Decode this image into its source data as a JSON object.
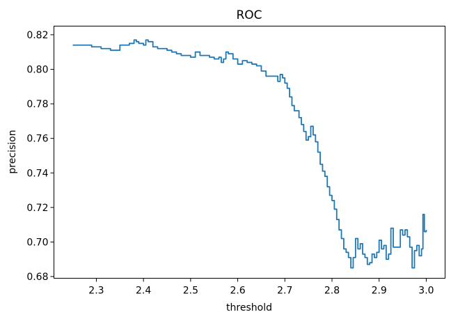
{
  "chart_data": {
    "type": "line",
    "title": "ROC",
    "xlabel": "threshold",
    "ylabel": "precision",
    "xlim": [
      2.21,
      3.04
    ],
    "ylim": [
      0.679,
      0.825
    ],
    "grid": false,
    "x_ticks": [
      2.3,
      2.4,
      2.5,
      2.6,
      2.7,
      2.8,
      2.9,
      3.0
    ],
    "x_tick_labels": [
      "2.3",
      "2.4",
      "2.5",
      "2.6",
      "2.7",
      "2.8",
      "2.9",
      "3.0"
    ],
    "y_ticks": [
      0.68,
      0.7,
      0.72,
      0.74,
      0.76,
      0.78,
      0.8,
      0.82
    ],
    "y_tick_labels": [
      "0.68",
      "0.70",
      "0.72",
      "0.74",
      "0.76",
      "0.78",
      "0.80",
      "0.82"
    ],
    "series": [
      {
        "color": "#1f77b4",
        "x": [
          2.25,
          2.27,
          2.29,
          2.31,
          2.33,
          2.35,
          2.36,
          2.37,
          2.38,
          2.385,
          2.39,
          2.395,
          2.4,
          2.405,
          2.41,
          2.42,
          2.43,
          2.44,
          2.45,
          2.46,
          2.47,
          2.48,
          2.49,
          2.5,
          2.51,
          2.52,
          2.53,
          2.54,
          2.55,
          2.56,
          2.565,
          2.57,
          2.575,
          2.58,
          2.59,
          2.6,
          2.61,
          2.62,
          2.63,
          2.64,
          2.65,
          2.66,
          2.67,
          2.68,
          2.685,
          2.69,
          2.695,
          2.7,
          2.705,
          2.71,
          2.715,
          2.72,
          2.725,
          2.73,
          2.735,
          2.74,
          2.745,
          2.75,
          2.755,
          2.76,
          2.765,
          2.77,
          2.775,
          2.78,
          2.785,
          2.79,
          2.795,
          2.8,
          2.805,
          2.81,
          2.815,
          2.82,
          2.825,
          2.83,
          2.835,
          2.84,
          2.845,
          2.85,
          2.855,
          2.86,
          2.865,
          2.87,
          2.875,
          2.88,
          2.885,
          2.89,
          2.895,
          2.9,
          2.905,
          2.91,
          2.915,
          2.92,
          2.925,
          2.93,
          2.935,
          2.94,
          2.945,
          2.95,
          2.955,
          2.96,
          2.965,
          2.97,
          2.975,
          2.98,
          2.985,
          2.99,
          2.993,
          2.996,
          3.0
        ],
        "y": [
          0.814,
          0.814,
          0.813,
          0.812,
          0.811,
          0.814,
          0.814,
          0.815,
          0.817,
          0.816,
          0.815,
          0.815,
          0.814,
          0.817,
          0.816,
          0.813,
          0.812,
          0.812,
          0.811,
          0.81,
          0.809,
          0.808,
          0.808,
          0.807,
          0.81,
          0.808,
          0.808,
          0.807,
          0.806,
          0.807,
          0.804,
          0.806,
          0.81,
          0.809,
          0.806,
          0.803,
          0.805,
          0.804,
          0.803,
          0.802,
          0.799,
          0.796,
          0.796,
          0.796,
          0.793,
          0.797,
          0.795,
          0.792,
          0.789,
          0.784,
          0.779,
          0.776,
          0.776,
          0.772,
          0.768,
          0.764,
          0.759,
          0.761,
          0.767,
          0.762,
          0.758,
          0.752,
          0.745,
          0.741,
          0.738,
          0.732,
          0.727,
          0.724,
          0.719,
          0.713,
          0.707,
          0.702,
          0.696,
          0.694,
          0.691,
          0.685,
          0.691,
          0.702,
          0.696,
          0.699,
          0.693,
          0.691,
          0.687,
          0.688,
          0.693,
          0.691,
          0.694,
          0.701,
          0.696,
          0.698,
          0.69,
          0.693,
          0.708,
          0.697,
          0.697,
          0.697,
          0.707,
          0.704,
          0.707,
          0.703,
          0.697,
          0.685,
          0.695,
          0.698,
          0.692,
          0.696,
          0.716,
          0.706,
          0.707
        ]
      }
    ]
  }
}
